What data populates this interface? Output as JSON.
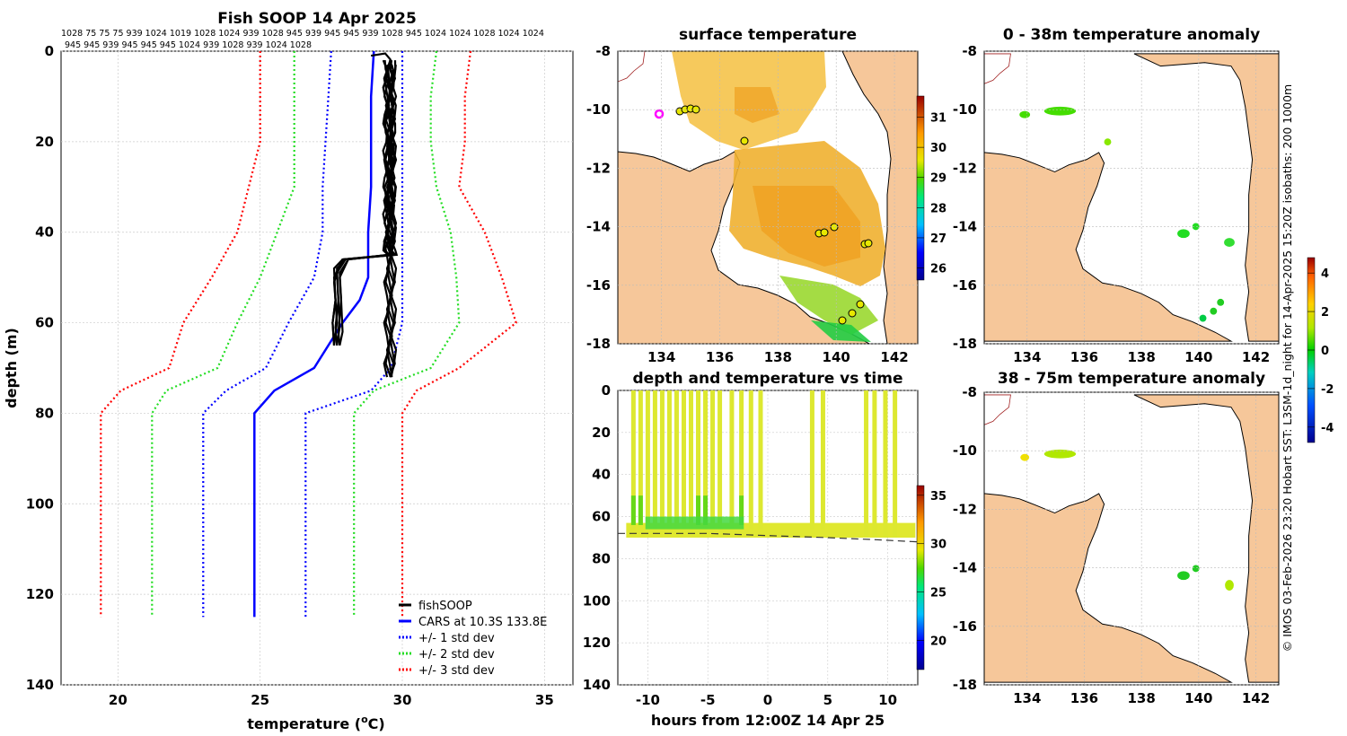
{
  "profile": {
    "title": "Fish SOOP 14 Apr 2025",
    "header_row1": "1028 75 75 75 939 1024 1019 1028 1024 939 1028 945 939 945 945 939 1028 945 1024 1024 1028 1024 1024",
    "header_row2": "945 945 939 945 945 945 1024 939 1028 939 1024 1028",
    "xlabel": "temperature (",
    "xlabel_sup": "o",
    "xlabel_end": "C)",
    "ylabel": "depth (m)",
    "xlim": [
      18,
      36
    ],
    "ylim": [
      0,
      140
    ],
    "xticks": [
      "20",
      "25",
      "30",
      "35"
    ],
    "yticks": [
      "0",
      "20",
      "40",
      "60",
      "80",
      "100",
      "120",
      "140"
    ],
    "legend": [
      "fishSOOP",
      "CARS at 10.3S 133.8E",
      "+/- 1 std dev",
      "+/- 2 std dev",
      "+/- 3 std dev"
    ]
  },
  "sst_map": {
    "title": "surface temperature",
    "xticks": [
      "134",
      "136",
      "138",
      "140",
      "142"
    ],
    "yticks": [
      "-8",
      "-10",
      "-12",
      "-14",
      "-16",
      "-18"
    ],
    "cbar_ticks": [
      "26",
      "27",
      "28",
      "29",
      "30",
      "31"
    ]
  },
  "time_panel": {
    "title": "depth and temperature vs time",
    "xlabel": "hours from 12:00Z 14 Apr 25",
    "xticks": [
      "-10",
      "-5",
      "0",
      "5",
      "10"
    ],
    "yticks": [
      "0",
      "20",
      "40",
      "60",
      "80",
      "100",
      "120",
      "140"
    ],
    "cbar_ticks": [
      "20",
      "25",
      "30",
      "35"
    ]
  },
  "anom_top": {
    "title": "0 - 38m temperature anomaly",
    "xticks": [
      "134",
      "136",
      "138",
      "140",
      "142"
    ],
    "yticks": [
      "-8",
      "-10",
      "-12",
      "-14",
      "-16",
      "-18"
    ]
  },
  "anom_bottom": {
    "title": "38 - 75m temperature anomaly",
    "xticks": [
      "134",
      "136",
      "138",
      "140",
      "142"
    ],
    "yticks": [
      "-8",
      "-10",
      "-12",
      "-14",
      "-16",
      "-18"
    ]
  },
  "anom_cbar_ticks": [
    "4",
    "2",
    "0",
    "-2",
    "-4"
  ],
  "credit": "© IMOS 03-Feb-2026 23:20 Hobart SST: L3SM-1d_night for 14-Apr-2025 15:20Z isobaths: 200  1000m",
  "colors": {
    "land": "#f6c79a",
    "fish": "#000000",
    "cars": "#0000ff",
    "std1": "#0000ff",
    "std2": "#22dd22",
    "std3": "#ff0000"
  },
  "chart_data": [
    {
      "type": "line",
      "title": "Fish SOOP 14 Apr 2025",
      "xlabel": "temperature (oC)",
      "ylabel": "depth (m)",
      "xlim": [
        18,
        36
      ],
      "ylim": [
        140,
        0
      ],
      "series": [
        {
          "name": "CARS at 10.3S 133.8E",
          "style": "solid",
          "color": "#0000ff",
          "x": [
            29.0,
            28.9,
            28.9,
            28.9,
            28.8,
            28.8,
            28.5,
            27.9,
            26.9,
            25.5,
            24.8,
            24.8
          ],
          "y": [
            0,
            10,
            20,
            30,
            40,
            50,
            55,
            60,
            70,
            75,
            80,
            125
          ]
        },
        {
          "name": "+/- 1 std dev",
          "style": "dotted",
          "color": "#0000ff",
          "x_low": [
            27.5,
            27.4,
            27.3,
            27.2,
            27.2,
            26.9,
            26.0,
            25.2,
            23.8,
            23.0,
            23.0
          ],
          "x_high": [
            30.0,
            30.0,
            30.0,
            30.0,
            30.0,
            30.0,
            30.0,
            29.6,
            28.9,
            26.6,
            26.6
          ],
          "y": [
            0,
            10,
            20,
            30,
            40,
            50,
            60,
            70,
            75,
            80,
            125
          ]
        },
        {
          "name": "+/- 2 std dev",
          "style": "dotted",
          "color": "#22dd22",
          "x_low": [
            26.2,
            26.2,
            26.2,
            26.2,
            25.6,
            25.0,
            24.2,
            23.5,
            21.7,
            21.2,
            21.2
          ],
          "x_high": [
            31.2,
            31.0,
            31.0,
            31.2,
            31.7,
            31.9,
            32.0,
            31.0,
            29.0,
            28.3,
            28.3
          ],
          "y": [
            0,
            10,
            20,
            30,
            40,
            50,
            60,
            70,
            75,
            80,
            125
          ]
        },
        {
          "name": "+/- 3 std dev",
          "style": "dotted",
          "color": "#ff0000",
          "x_low": [
            25.0,
            25.0,
            25.0,
            24.6,
            24.2,
            23.3,
            22.3,
            21.8,
            20.1,
            19.4,
            19.4
          ],
          "x_high": [
            32.4,
            32.2,
            32.2,
            32.0,
            32.9,
            33.5,
            34.0,
            32.0,
            30.5,
            30.0,
            30.0
          ],
          "y": [
            0,
            10,
            20,
            30,
            40,
            50,
            60,
            70,
            75,
            80,
            125
          ]
        },
        {
          "name": "fishSOOP",
          "style": "solid",
          "color": "#000000",
          "x": [
            28.9,
            29.6,
            29.5,
            29.6,
            29.6,
            29.5,
            29.7,
            29.5,
            29.6,
            29.5,
            27.6,
            27.7,
            27.6,
            29.6,
            29.7,
            29.6,
            29.7
          ],
          "y": [
            1,
            3,
            10,
            20,
            30,
            40,
            44,
            45,
            46,
            47,
            48,
            55,
            65,
            58,
            65,
            72,
            75
          ]
        }
      ]
    },
    {
      "type": "scatter",
      "title": "depth and temperature vs time",
      "xlabel": "hours from 12:00Z 14 Apr 25",
      "ylabel": "depth (m)",
      "xlim": [
        -12.5,
        12.5
      ],
      "ylim": [
        140,
        0
      ],
      "bottom_depth_dashed": [
        68,
        68,
        69,
        70,
        71,
        72
      ]
    }
  ]
}
